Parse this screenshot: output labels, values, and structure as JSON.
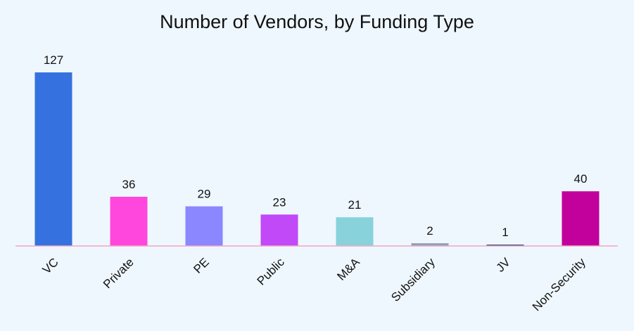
{
  "chart_data": {
    "type": "bar",
    "title": "Number of Vendors, by Funding Type",
    "categories": [
      "VC",
      "Private",
      "PE",
      "Public",
      "M&A",
      "Subsidiary",
      "JV",
      "Non-Security"
    ],
    "values": [
      127,
      36,
      29,
      23,
      21,
      2,
      1,
      40
    ],
    "colors": [
      "#3572e0",
      "#ff47dd",
      "#8a87ff",
      "#c149f8",
      "#88d2dc",
      "#8fa0b7",
      "#2e4a76",
      "#c2009c"
    ],
    "baseline_color": "#f4a6c4",
    "xlabel": "",
    "ylabel": "",
    "ylim": [
      0,
      127
    ],
    "grid": false,
    "data_labels": true,
    "tick_label_rotation": -45
  }
}
